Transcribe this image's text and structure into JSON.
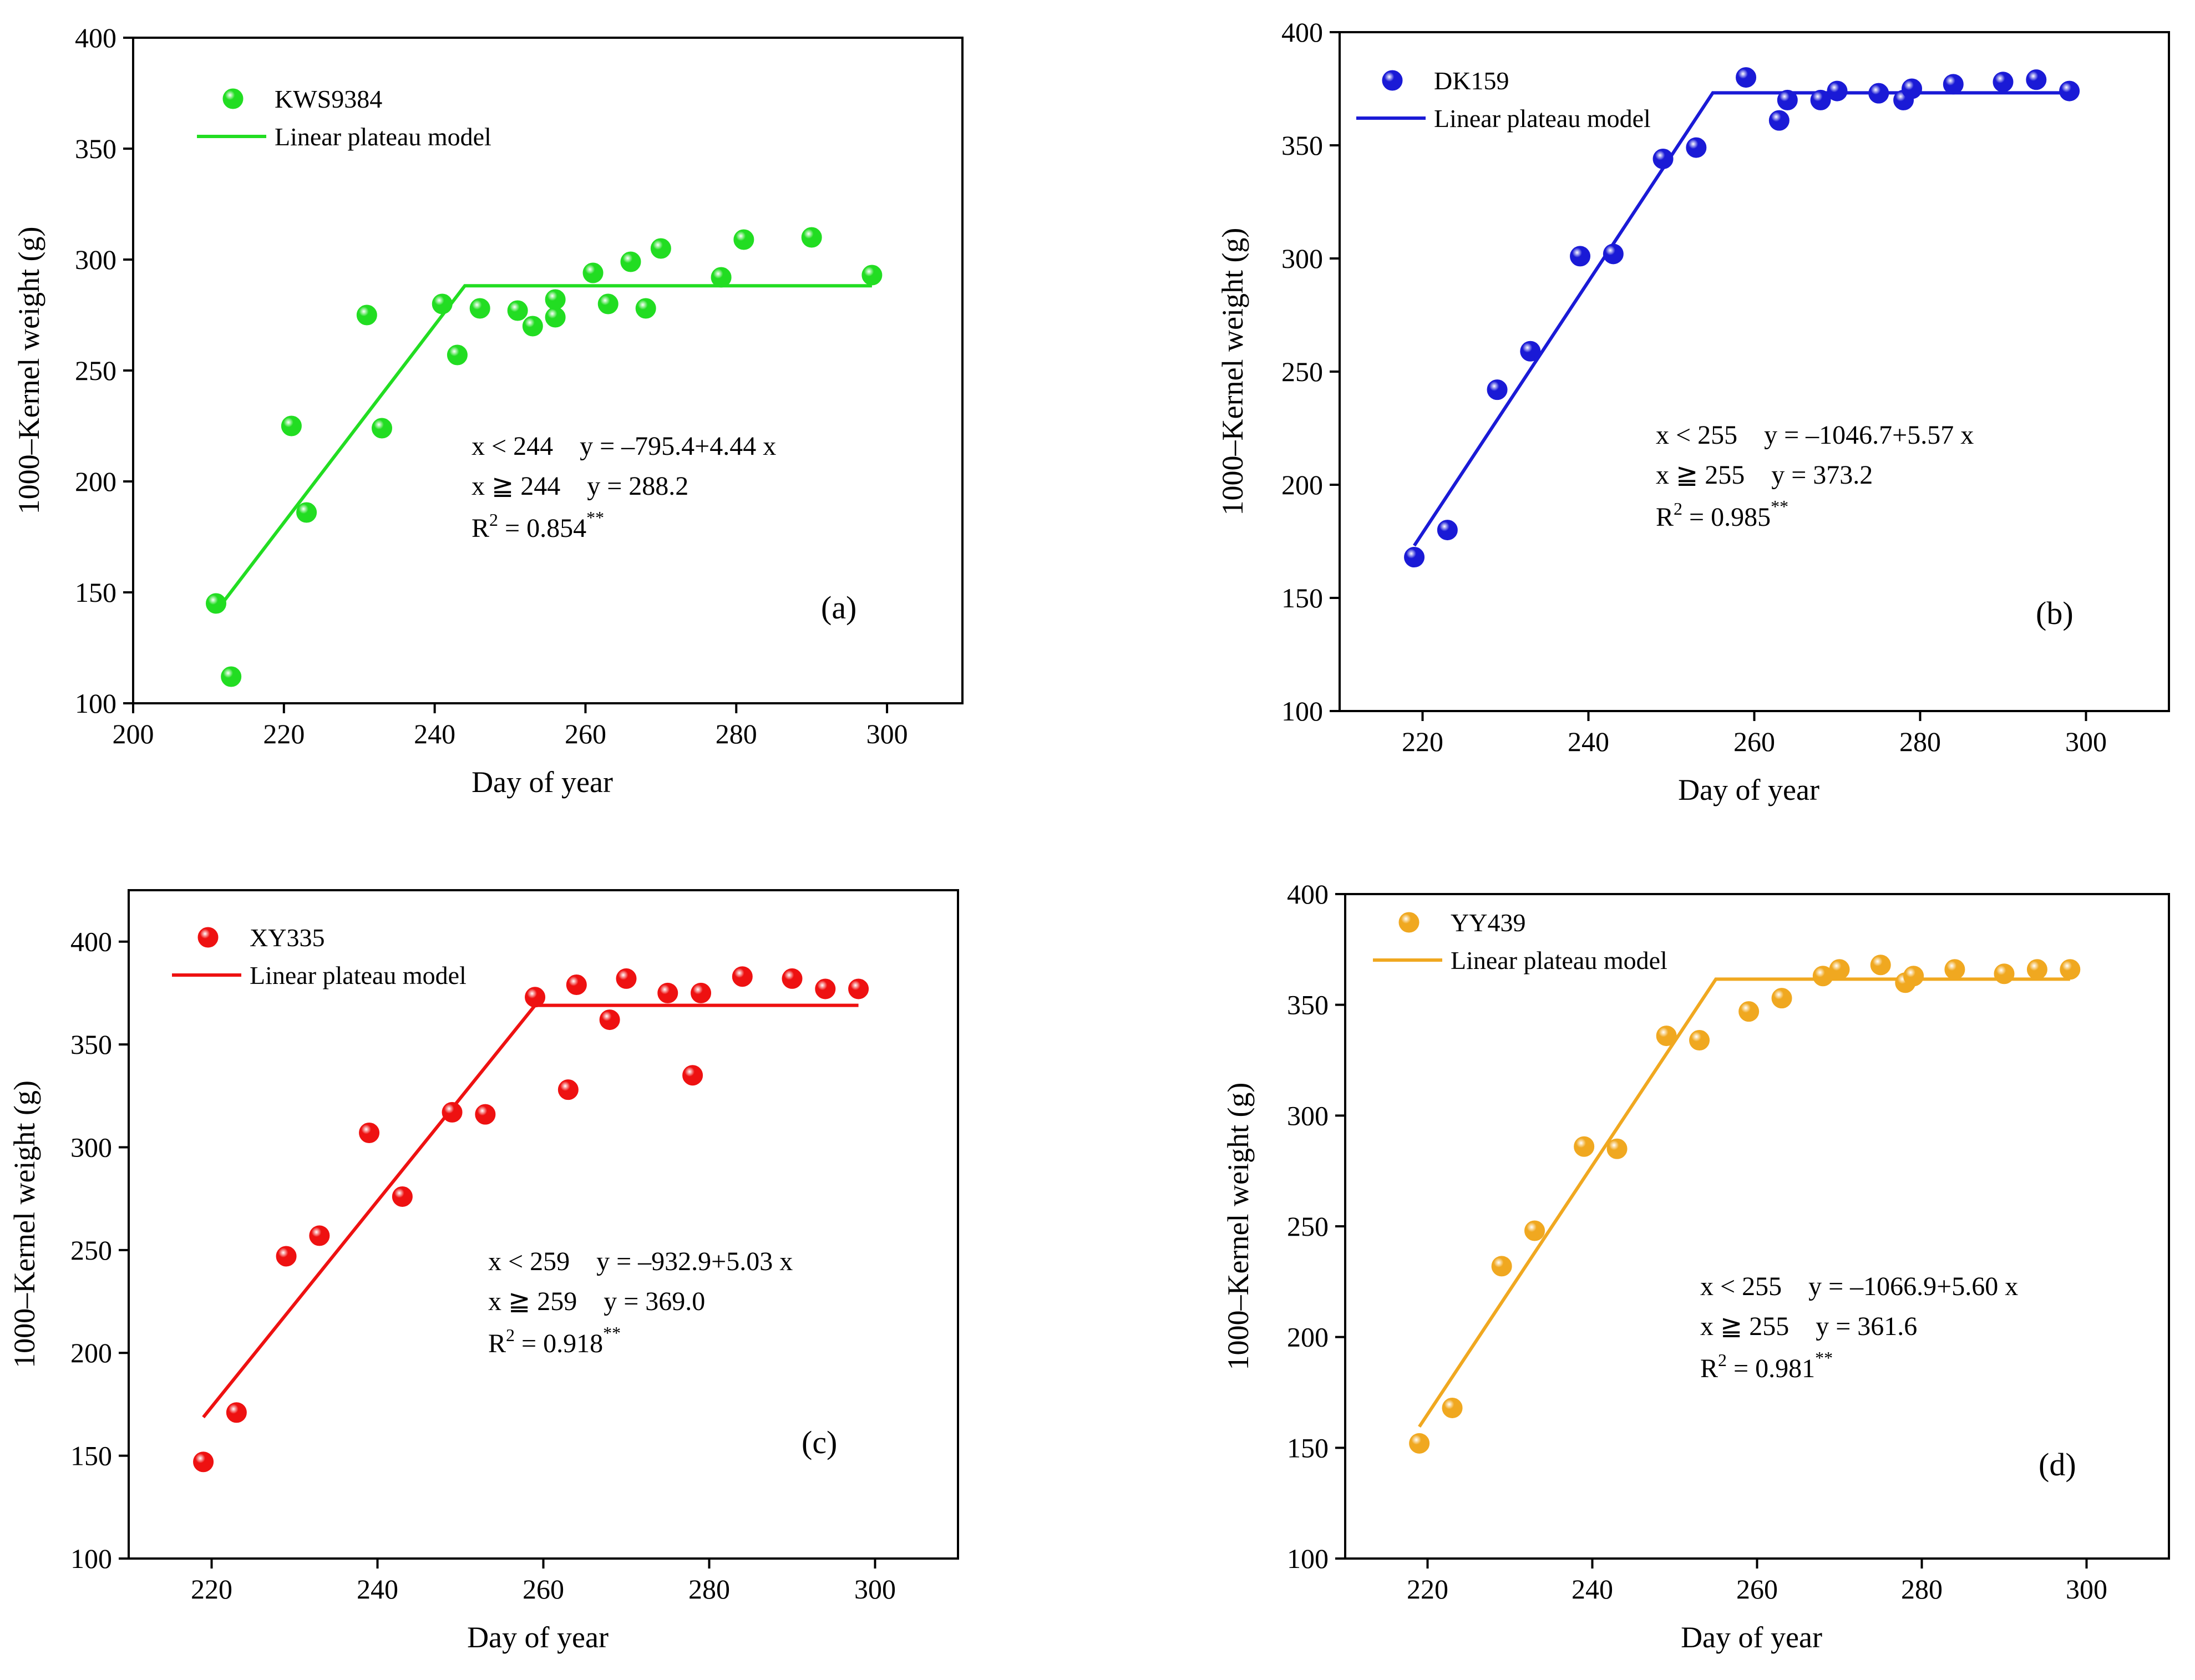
{
  "chart_data": [
    {
      "type": "scatter",
      "panel_label": "(a)",
      "series_name": "KWS9384",
      "fit_name": "Linear plateau model",
      "color": "#22dd22",
      "xlabel": "Day of year",
      "ylabel": "1000–Kernel weight (g)",
      "xlim": [
        200,
        310
      ],
      "ylim": [
        100,
        400
      ],
      "xticks": [
        200,
        220,
        240,
        260,
        280,
        300
      ],
      "yticks": [
        100,
        150,
        200,
        250,
        300,
        350,
        400
      ],
      "xtick_labels": [
        "200",
        "220",
        "240",
        "260",
        "280",
        "300"
      ],
      "ytick_labels": [
        "100",
        "150",
        "200",
        "250",
        "300",
        "350",
        "400"
      ],
      "points": [
        {
          "x": 211,
          "y": 145
        },
        {
          "x": 213,
          "y": 112
        },
        {
          "x": 221,
          "y": 225
        },
        {
          "x": 223,
          "y": 186
        },
        {
          "x": 231,
          "y": 275
        },
        {
          "x": 233,
          "y": 224
        },
        {
          "x": 241,
          "y": 280
        },
        {
          "x": 243,
          "y": 257
        },
        {
          "x": 246,
          "y": 278
        },
        {
          "x": 251,
          "y": 277
        },
        {
          "x": 253,
          "y": 270
        },
        {
          "x": 256,
          "y": 274
        },
        {
          "x": 256,
          "y": 282
        },
        {
          "x": 261,
          "y": 294
        },
        {
          "x": 263,
          "y": 280
        },
        {
          "x": 266,
          "y": 299
        },
        {
          "x": 268,
          "y": 278
        },
        {
          "x": 270,
          "y": 305
        },
        {
          "x": 278,
          "y": 292
        },
        {
          "x": 281,
          "y": 309
        },
        {
          "x": 290,
          "y": 310
        },
        {
          "x": 298,
          "y": 293
        }
      ],
      "fit_line": [
        {
          "x": 211,
          "y": 141.4
        },
        {
          "x": 244,
          "y": 288.2
        },
        {
          "x": 298,
          "y": 288.2
        }
      ],
      "equation_1": "x < 244    y = –795.4+4.44 x",
      "equation_2": "x ≧ 244    y = 288.2",
      "r2_text": "R",
      "r2_sup": "2",
      "r2_value": " = 0.854",
      "r2_stars": "**"
    },
    {
      "type": "scatter",
      "panel_label": "(b)",
      "series_name": "DK159",
      "fit_name": "Linear plateau model",
      "color": "#1a1ad6",
      "xlabel": "Day of year",
      "ylabel": "1000–Kernel weight (g)",
      "xlim": [
        210,
        310
      ],
      "ylim": [
        100,
        400
      ],
      "xticks": [
        220,
        240,
        260,
        280,
        300
      ],
      "yticks": [
        100,
        150,
        200,
        250,
        300,
        350,
        400
      ],
      "xtick_labels": [
        "220",
        "240",
        "260",
        "280",
        "300"
      ],
      "ytick_labels": [
        "100",
        "150",
        "200",
        "250",
        "300",
        "350",
        "400"
      ],
      "points": [
        {
          "x": 219,
          "y": 168
        },
        {
          "x": 223,
          "y": 180
        },
        {
          "x": 229,
          "y": 242
        },
        {
          "x": 233,
          "y": 259
        },
        {
          "x": 239,
          "y": 301
        },
        {
          "x": 243,
          "y": 302
        },
        {
          "x": 249,
          "y": 344
        },
        {
          "x": 253,
          "y": 349
        },
        {
          "x": 259,
          "y": 380
        },
        {
          "x": 263,
          "y": 361
        },
        {
          "x": 264,
          "y": 370
        },
        {
          "x": 268,
          "y": 370
        },
        {
          "x": 270,
          "y": 374
        },
        {
          "x": 275,
          "y": 373
        },
        {
          "x": 278,
          "y": 370
        },
        {
          "x": 279,
          "y": 375
        },
        {
          "x": 284,
          "y": 377
        },
        {
          "x": 290,
          "y": 378
        },
        {
          "x": 294,
          "y": 379
        },
        {
          "x": 298,
          "y": 374
        }
      ],
      "fit_line": [
        {
          "x": 219,
          "y": 173.1
        },
        {
          "x": 255,
          "y": 373.2
        },
        {
          "x": 298,
          "y": 373.2
        }
      ],
      "equation_1": "x < 255    y = –1046.7+5.57 x",
      "equation_2": "x ≧ 255    y = 373.2",
      "r2_text": "R",
      "r2_sup": "2",
      "r2_value": " = 0.985",
      "r2_stars": "**"
    },
    {
      "type": "scatter",
      "panel_label": "(c)",
      "series_name": "XY335",
      "fit_name": "Linear plateau model",
      "color": "#ee1111",
      "xlabel": "Day of year",
      "ylabel": "1000–Kernel weight (g)",
      "xlim": [
        210,
        310
      ],
      "ylim": [
        100,
        425
      ],
      "xticks": [
        220,
        240,
        260,
        280,
        300
      ],
      "yticks": [
        100,
        150,
        200,
        250,
        300,
        350,
        400
      ],
      "xtick_labels": [
        "220",
        "240",
        "260",
        "280",
        "300"
      ],
      "ytick_labels": [
        "100",
        "150",
        "200",
        "250",
        "300",
        "350",
        "400"
      ],
      "points": [
        {
          "x": 219,
          "y": 147
        },
        {
          "x": 223,
          "y": 171
        },
        {
          "x": 229,
          "y": 247
        },
        {
          "x": 233,
          "y": 257
        },
        {
          "x": 239,
          "y": 307
        },
        {
          "x": 243,
          "y": 276
        },
        {
          "x": 249,
          "y": 317
        },
        {
          "x": 253,
          "y": 316
        },
        {
          "x": 259,
          "y": 373
        },
        {
          "x": 263,
          "y": 328
        },
        {
          "x": 264,
          "y": 379
        },
        {
          "x": 268,
          "y": 362
        },
        {
          "x": 270,
          "y": 382
        },
        {
          "x": 275,
          "y": 375
        },
        {
          "x": 278,
          "y": 335
        },
        {
          "x": 279,
          "y": 375
        },
        {
          "x": 284,
          "y": 383
        },
        {
          "x": 290,
          "y": 382
        },
        {
          "x": 294,
          "y": 377
        },
        {
          "x": 298,
          "y": 377
        }
      ],
      "fit_line": [
        {
          "x": 219,
          "y": 168.7
        },
        {
          "x": 259,
          "y": 369.0
        },
        {
          "x": 298,
          "y": 369.0
        }
      ],
      "equation_1": "x < 259    y = –932.9+5.03 x",
      "equation_2": "x ≧ 259    y = 369.0",
      "r2_text": "R",
      "r2_sup": "2",
      "r2_value": " = 0.918",
      "r2_stars": "**"
    },
    {
      "type": "scatter",
      "panel_label": "(d)",
      "series_name": "YY439",
      "fit_name": "Linear plateau model",
      "color": "#f0a820",
      "xlabel": "Day of year",
      "ylabel": "1000–Kernel weight (g)",
      "xlim": [
        210,
        310
      ],
      "ylim": [
        100,
        400
      ],
      "xticks": [
        220,
        240,
        260,
        280,
        300
      ],
      "yticks": [
        100,
        150,
        200,
        250,
        300,
        350,
        400
      ],
      "xtick_labels": [
        "220",
        "240",
        "260",
        "280",
        "300"
      ],
      "ytick_labels": [
        "100",
        "150",
        "200",
        "250",
        "300",
        "350",
        "400"
      ],
      "points": [
        {
          "x": 219,
          "y": 152
        },
        {
          "x": 223,
          "y": 168
        },
        {
          "x": 229,
          "y": 232
        },
        {
          "x": 233,
          "y": 248
        },
        {
          "x": 239,
          "y": 286
        },
        {
          "x": 243,
          "y": 285
        },
        {
          "x": 249,
          "y": 336
        },
        {
          "x": 253,
          "y": 334
        },
        {
          "x": 259,
          "y": 347
        },
        {
          "x": 263,
          "y": 353
        },
        {
          "x": 268,
          "y": 363
        },
        {
          "x": 270,
          "y": 366
        },
        {
          "x": 275,
          "y": 368
        },
        {
          "x": 278,
          "y": 360
        },
        {
          "x": 279,
          "y": 363
        },
        {
          "x": 284,
          "y": 366
        },
        {
          "x": 290,
          "y": 364
        },
        {
          "x": 294,
          "y": 366
        },
        {
          "x": 298,
          "y": 366
        }
      ],
      "fit_line": [
        {
          "x": 219,
          "y": 159.5
        },
        {
          "x": 255,
          "y": 361.6
        },
        {
          "x": 298,
          "y": 361.6
        }
      ],
      "equation_1": "x < 255    y = –1066.9+5.60 x",
      "equation_2": "x ≧ 255    y = 361.6",
      "r2_text": "R",
      "r2_sup": "2",
      "r2_value": " = 0.981",
      "r2_stars": "**"
    }
  ]
}
